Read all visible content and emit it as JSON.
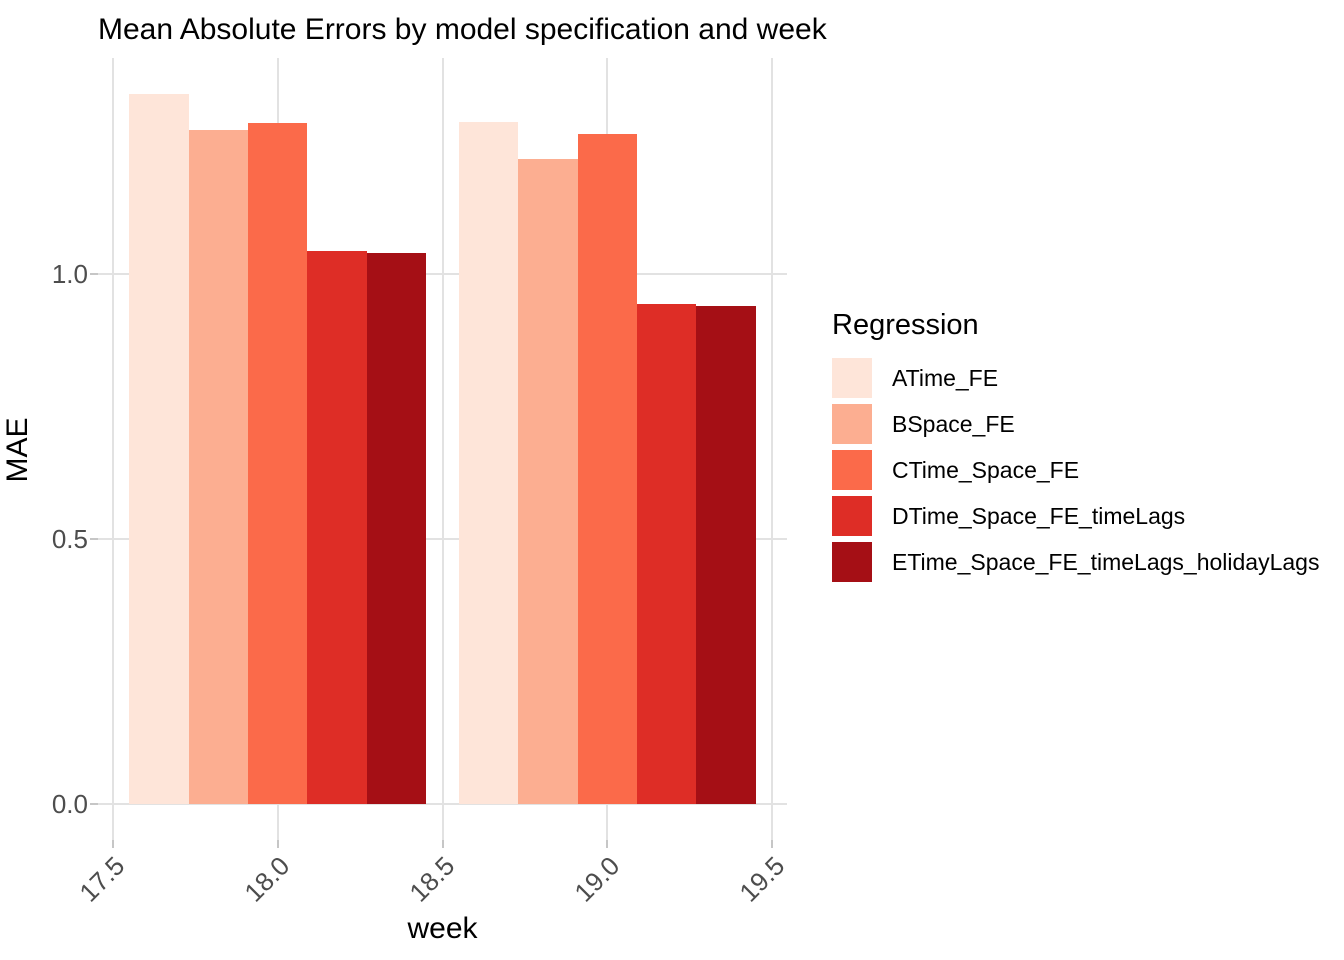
{
  "chart_data": {
    "type": "bar",
    "title": "Mean Absolute Errors by model specification and week",
    "xlabel": "week",
    "ylabel": "MAE",
    "legend_title": "Regression",
    "legend_position": "right",
    "grid": "major-only",
    "background": "#FFFFFF",
    "categories": [
      18,
      19
    ],
    "series": [
      {
        "name": "ATime_FE",
        "color": "#FEE5D9",
        "values": [
          1.34,
          1.286
        ]
      },
      {
        "name": "BSpace_FE",
        "color": "#FCAE91",
        "values": [
          1.272,
          1.216
        ]
      },
      {
        "name": "CTime_Space_FE",
        "color": "#FB6A4A",
        "values": [
          1.285,
          1.263
        ]
      },
      {
        "name": "DTime_Space_FE_timeLags",
        "color": "#DE2D26",
        "values": [
          1.043,
          0.944
        ]
      },
      {
        "name": "ETime_Space_FE_timeLags_holidayLags",
        "color": "#A50F15",
        "values": [
          1.04,
          0.94
        ]
      }
    ],
    "x_ticks": [
      "17.5",
      "18.0",
      "18.5",
      "19.0",
      "19.5"
    ],
    "y_ticks": [
      "0.0",
      "0.5",
      "1.0"
    ],
    "xlim": [
      17.455,
      19.545
    ],
    "ylim": [
      -0.067,
      1.407
    ],
    "bar_width": 0.18,
    "group_width": 0.9,
    "colors": {
      "gridline": "#E2E2E2",
      "tick_mark": "#C6C6C6",
      "axis_text": "#4D4D4D",
      "title_text": "#000000"
    }
  }
}
